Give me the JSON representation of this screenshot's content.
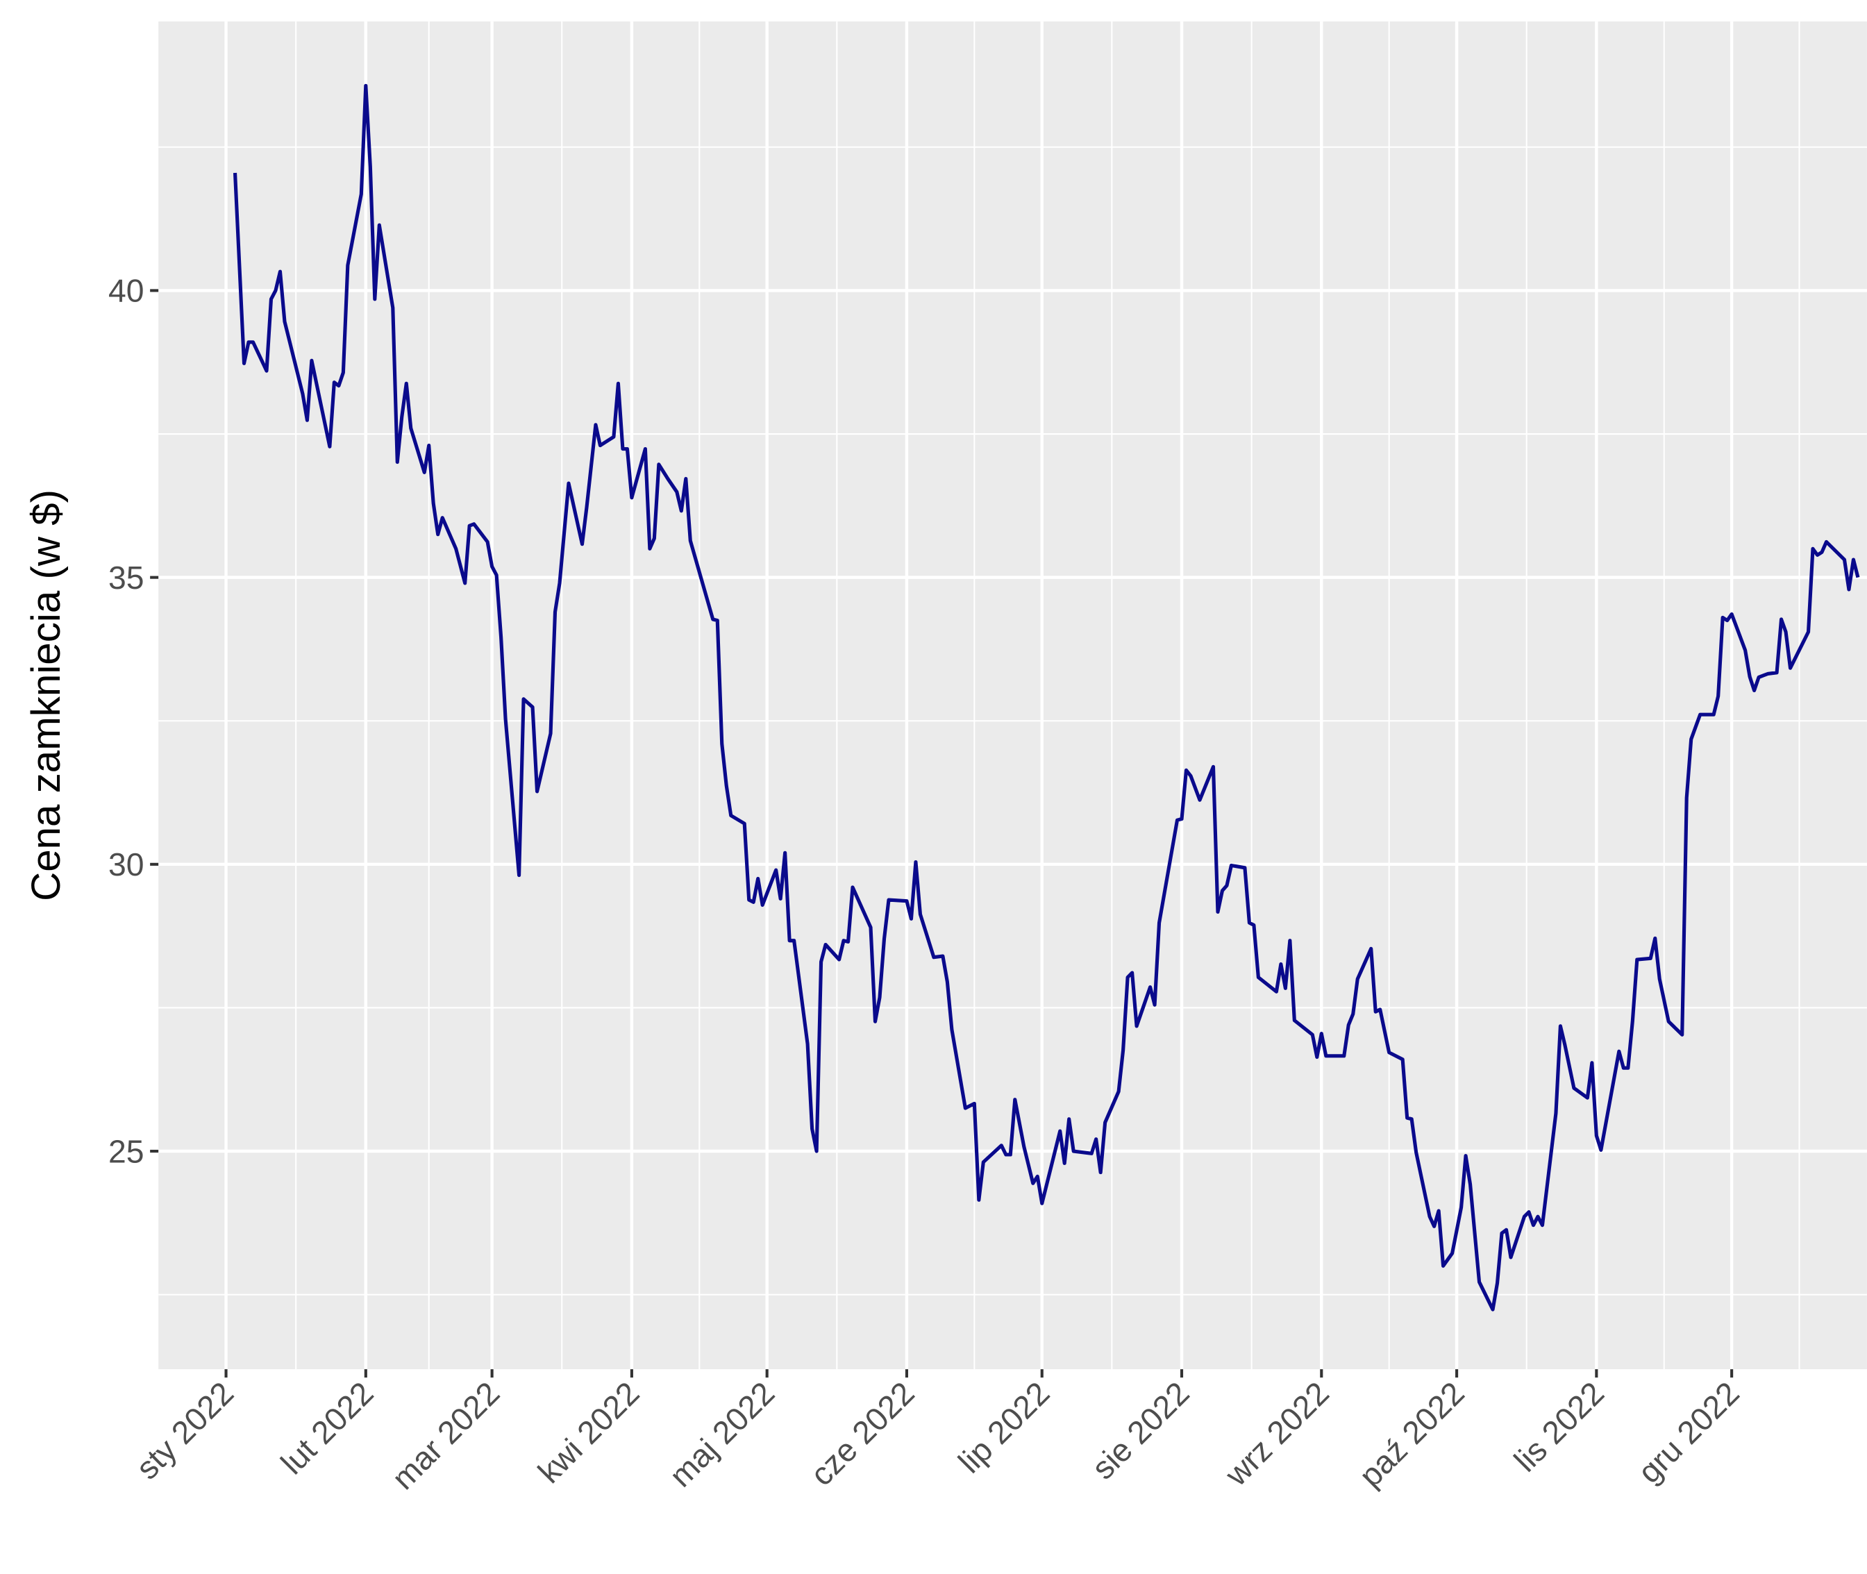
{
  "chart_data": {
    "type": "line",
    "y_label": "Cena zamkniecia (w $)",
    "xlim": [
      -14,
      365
    ],
    "xticks": [
      {
        "value": 1,
        "label": "sty 2022"
      },
      {
        "value": 32,
        "label": "lut 2022"
      },
      {
        "value": 60,
        "label": "mar 2022"
      },
      {
        "value": 91,
        "label": "kwi 2022"
      },
      {
        "value": 121,
        "label": "maj 2022"
      },
      {
        "value": 152,
        "label": "cze 2022"
      },
      {
        "value": 182,
        "label": "lip 2022"
      },
      {
        "value": 213,
        "label": "sie 2022"
      },
      {
        "value": 244,
        "label": "wrz 2022"
      },
      {
        "value": 274,
        "label": "paź 2022"
      },
      {
        "value": 305,
        "label": "lis 2022"
      },
      {
        "value": 335,
        "label": "gru 2022"
      }
    ],
    "ylim": [
      21.2,
      44.69
    ],
    "yticks": [
      25,
      30,
      35,
      40
    ],
    "grid": true,
    "x": [
      3,
      5,
      6,
      7,
      10,
      11,
      12,
      13,
      14,
      18,
      19,
      20,
      24,
      25,
      26,
      27,
      28,
      31,
      32,
      33,
      34,
      35,
      38,
      39,
      40,
      41,
      42,
      45,
      46,
      47,
      48,
      49,
      52,
      54,
      55,
      56,
      59,
      60,
      61,
      62,
      63,
      66,
      67,
      69,
      70,
      73,
      74,
      75,
      77,
      80,
      81,
      83,
      84,
      87,
      88,
      89,
      90,
      91,
      94,
      95,
      96,
      97,
      99,
      101,
      102,
      103,
      104,
      109,
      110,
      111,
      112,
      113,
      116,
      117,
      118,
      119,
      120,
      123,
      124,
      125,
      126,
      127,
      130,
      131,
      132,
      133,
      134,
      137,
      138,
      139,
      140,
      144,
      145,
      146,
      147,
      148,
      152,
      153,
      154,
      155,
      158,
      160,
      161,
      162,
      165,
      167,
      168,
      169,
      173,
      174,
      175,
      176,
      178,
      180,
      181,
      182,
      186,
      187,
      188,
      189,
      193,
      194,
      195,
      196,
      199,
      200,
      201,
      202,
      203,
      206,
      207,
      208,
      212,
      213,
      214,
      215,
      217,
      220,
      221,
      222,
      223,
      224,
      227,
      228,
      229,
      230,
      234,
      235,
      236,
      237,
      238,
      242,
      243,
      244,
      245,
      249,
      250,
      251,
      252,
      255,
      256,
      257,
      259,
      262,
      263,
      264,
      265,
      268,
      269,
      270,
      271,
      273,
      275,
      276,
      277,
      279,
      282,
      283,
      284,
      285,
      286,
      289,
      290,
      291,
      292,
      293,
      296,
      297,
      298,
      300,
      303,
      304,
      305,
      306,
      310,
      311,
      312,
      313,
      314,
      317,
      318,
      319,
      321,
      324,
      325,
      326,
      328,
      331,
      332,
      333,
      334,
      335,
      338,
      339,
      340,
      341,
      343,
      345,
      346,
      347,
      348,
      352,
      353,
      354,
      355,
      356,
      360,
      361,
      362,
      363
    ],
    "series": [
      {
        "name": "Cena",
        "color": "#0a0a8c",
        "values": [
          42.05,
          38.73,
          39.1,
          39.1,
          38.6,
          39.85,
          40.0,
          40.33,
          39.46,
          38.2,
          37.74,
          38.78,
          37.28,
          38.4,
          38.34,
          38.57,
          40.44,
          41.68,
          43.57,
          42.16,
          39.85,
          41.14,
          39.7,
          37.01,
          37.8,
          38.38,
          37.6,
          36.83,
          37.3,
          36.29,
          35.75,
          36.04,
          35.5,
          34.9,
          35.9,
          35.93,
          35.62,
          35.19,
          35.04,
          33.96,
          32.53,
          29.81,
          32.88,
          32.74,
          31.27,
          32.28,
          34.4,
          34.9,
          36.64,
          35.58,
          36.22,
          37.66,
          37.3,
          37.45,
          38.38,
          37.24,
          37.24,
          36.39,
          37.24,
          35.5,
          35.68,
          36.97,
          36.72,
          36.49,
          36.16,
          36.72,
          35.64,
          34.27,
          34.25,
          32.1,
          31.37,
          30.85,
          30.71,
          29.38,
          29.34,
          29.75,
          29.29,
          29.9,
          29.4,
          30.2,
          28.67,
          28.67,
          26.87,
          25.39,
          25.0,
          28.3,
          28.6,
          28.34,
          28.67,
          28.65,
          29.6,
          28.9,
          27.26,
          27.68,
          28.7,
          29.38,
          29.36,
          29.05,
          30.04,
          29.13,
          28.38,
          28.4,
          27.95,
          27.12,
          25.75,
          25.83,
          24.15,
          24.81,
          25.1,
          24.94,
          24.94,
          25.9,
          25.08,
          24.44,
          24.56,
          24.09,
          25.35,
          24.79,
          25.56,
          25.0,
          24.96,
          25.21,
          24.63,
          25.5,
          26.04,
          26.76,
          28.03,
          28.11,
          27.18,
          27.86,
          27.55,
          28.98,
          30.77,
          30.79,
          31.64,
          31.54,
          31.12,
          31.7,
          29.17,
          29.54,
          29.63,
          29.98,
          29.94,
          28.98,
          28.94,
          28.03,
          27.78,
          28.26,
          27.84,
          28.67,
          27.28,
          27.03,
          26.64,
          27.05,
          26.66,
          26.66,
          27.2,
          27.39,
          28.0,
          28.53,
          27.43,
          27.47,
          26.72,
          26.6,
          25.58,
          25.56,
          24.98,
          23.86,
          23.69,
          23.96,
          23.0,
          23.22,
          24.02,
          24.92,
          24.42,
          22.72,
          22.24,
          22.7,
          23.57,
          23.63,
          23.15,
          23.86,
          23.94,
          23.71,
          23.86,
          23.71,
          25.66,
          27.18,
          26.85,
          26.1,
          25.93,
          26.54,
          25.27,
          25.02,
          26.74,
          26.45,
          26.45,
          27.26,
          28.34,
          28.36,
          28.71,
          28.0,
          27.26,
          27.03,
          31.16,
          32.18,
          32.61,
          32.61,
          32.93,
          34.3,
          34.25,
          34.36,
          33.73,
          33.27,
          33.03,
          33.26,
          33.32,
          33.34,
          34.27,
          34.05,
          33.42,
          34.05,
          35.5,
          35.39,
          35.44,
          35.62,
          35.31,
          34.79,
          35.31,
          35.0
        ]
      }
    ]
  }
}
